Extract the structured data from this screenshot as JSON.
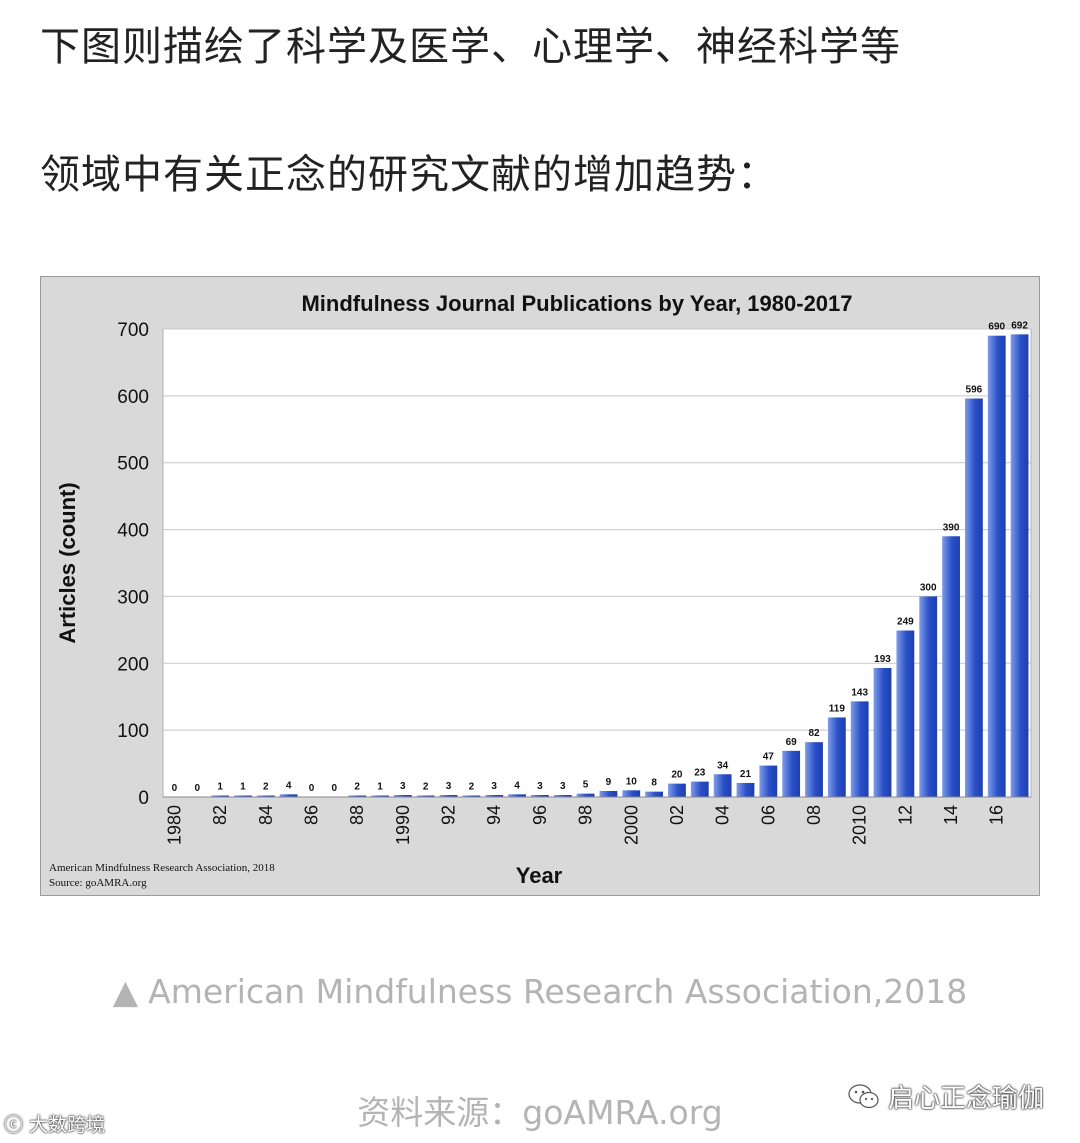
{
  "heading": {
    "line1": "下图则描绘了科学及医学、心理学、神经科学等",
    "line2": "领域中有关正念的研究文献的增加趋势："
  },
  "chart_data": {
    "type": "bar",
    "title": "Mindfulness Journal Publications by Year, 1980-2017",
    "xlabel": "Year",
    "ylabel": "Articles (count)",
    "ylim": [
      0,
      700
    ],
    "yticks": [
      "0",
      "100",
      "200",
      "300",
      "400",
      "500",
      "600",
      "700"
    ],
    "categories": [
      "1980",
      "1981",
      "1982",
      "1983",
      "1984",
      "1985",
      "1986",
      "1987",
      "1988",
      "1989",
      "1990",
      "1991",
      "1992",
      "1993",
      "1994",
      "1995",
      "1996",
      "1997",
      "1998",
      "1999",
      "2000",
      "2001",
      "2002",
      "2003",
      "2004",
      "2005",
      "2006",
      "2007",
      "2008",
      "2009",
      "2010",
      "2011",
      "2012",
      "2013",
      "2014",
      "2015",
      "2016",
      "2017"
    ],
    "values": [
      0,
      0,
      1,
      1,
      2,
      4,
      0,
      0,
      2,
      1,
      3,
      2,
      3,
      2,
      3,
      4,
      3,
      3,
      5,
      9,
      10,
      8,
      20,
      23,
      34,
      21,
      47,
      69,
      82,
      119,
      143,
      193,
      249,
      300,
      390,
      596,
      690,
      692
    ],
    "xtick_labels": [
      {
        "index": 0,
        "label": "1980"
      },
      {
        "index": 2,
        "label": "82"
      },
      {
        "index": 4,
        "label": "84"
      },
      {
        "index": 6,
        "label": "86"
      },
      {
        "index": 8,
        "label": "88"
      },
      {
        "index": 10,
        "label": "1990"
      },
      {
        "index": 12,
        "label": "92"
      },
      {
        "index": 14,
        "label": "94"
      },
      {
        "index": 16,
        "label": "96"
      },
      {
        "index": 18,
        "label": "98"
      },
      {
        "index": 20,
        "label": "2000"
      },
      {
        "index": 22,
        "label": "02"
      },
      {
        "index": 24,
        "label": "04"
      },
      {
        "index": 26,
        "label": "06"
      },
      {
        "index": 28,
        "label": "08"
      },
      {
        "index": 30,
        "label": "2010"
      },
      {
        "index": 32,
        "label": "12"
      },
      {
        "index": 34,
        "label": "14"
      },
      {
        "index": 36,
        "label": "16"
      }
    ],
    "source_note": [
      "American Mindfulness Research Association, 2018",
      "Source: goAMRA.org"
    ],
    "grid": true,
    "colors": {
      "bar_dark": "#2a50c8",
      "bar_light": "#7f9ce8",
      "frame_bg": "#d9d9d9",
      "plot_bg": "#ffffff"
    }
  },
  "caption": {
    "icon": "triangle-up-icon",
    "text": "American Mindfulness Research Association,2018"
  },
  "source_line": "资料来源：goAMRA.org",
  "watermarks": {
    "left": "大数跨境",
    "right": "启心正念瑜伽",
    "right_icon": "wechat-icon"
  }
}
